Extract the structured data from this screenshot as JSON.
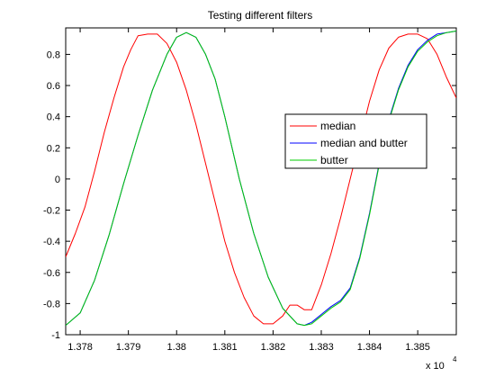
{
  "window": {
    "title": "Testing different filters"
  },
  "chart_data": {
    "type": "line",
    "title": "Testing different filters",
    "xlabel": "",
    "ylabel": "",
    "xlim": [
      13777,
      13858
    ],
    "ylim": [
      -1.0,
      0.97
    ],
    "x_multiplier_label": "x 10",
    "x_multiplier_exponent": "4",
    "x_ticks": [
      13780,
      13790,
      13800,
      13810,
      13820,
      13830,
      13840,
      13850
    ],
    "x_tick_labels": [
      "1.378",
      "1.379",
      "1.38",
      "1.381",
      "1.382",
      "1.383",
      "1.384",
      "1.385"
    ],
    "y_ticks": [
      -1,
      -0.8,
      -0.6,
      -0.4,
      -0.2,
      0,
      0.2,
      0.4,
      0.6,
      0.8
    ],
    "y_tick_labels": [
      "-1",
      "-0.8",
      "-0.6",
      "-0.4",
      "-0.2",
      "0",
      "0.2",
      "0.4",
      "0.6",
      "0.8"
    ],
    "grid": false,
    "legend_position": "right",
    "series": [
      {
        "name": "median",
        "color": "#ff0000",
        "x": [
          13777,
          13779,
          13781,
          13783,
          13785,
          13787,
          13789,
          13790.5,
          13792,
          13794,
          13796,
          13798,
          13800,
          13802,
          13804,
          13806,
          13808,
          13810,
          13812,
          13814,
          13816,
          13818,
          13820,
          13822,
          13823.5,
          13825,
          13826.5,
          13828,
          13830,
          13832,
          13834,
          13836,
          13838,
          13840,
          13842,
          13844,
          13846,
          13848,
          13850,
          13852,
          13854,
          13856,
          13858
        ],
        "y": [
          -0.5,
          -0.35,
          -0.18,
          0.05,
          0.3,
          0.52,
          0.72,
          0.83,
          0.92,
          0.93,
          0.93,
          0.87,
          0.75,
          0.57,
          0.35,
          0.1,
          -0.15,
          -0.4,
          -0.6,
          -0.76,
          -0.88,
          -0.93,
          -0.93,
          -0.88,
          -0.81,
          -0.81,
          -0.84,
          -0.84,
          -0.68,
          -0.48,
          -0.25,
          0.0,
          0.25,
          0.5,
          0.7,
          0.84,
          0.91,
          0.93,
          0.93,
          0.9,
          0.8,
          0.65,
          0.52
        ]
      },
      {
        "name": "median and butter",
        "color": "#0000ff",
        "x": [
          13777,
          13780,
          13783,
          13786,
          13789,
          13792,
          13795,
          13798,
          13800,
          13802,
          13804,
          13806,
          13808,
          13810,
          13813,
          13816,
          13819,
          13822,
          13825,
          13826.5,
          13828,
          13830,
          13832,
          13834,
          13836,
          13838,
          13840,
          13842,
          13844,
          13846,
          13848,
          13850,
          13852,
          13854,
          13856,
          13858
        ],
        "y": [
          -0.94,
          -0.86,
          -0.65,
          -0.36,
          -0.03,
          0.28,
          0.57,
          0.8,
          0.91,
          0.94,
          0.91,
          0.8,
          0.64,
          0.4,
          0.0,
          -0.35,
          -0.63,
          -0.83,
          -0.93,
          -0.94,
          -0.92,
          -0.87,
          -0.82,
          -0.78,
          -0.7,
          -0.5,
          -0.22,
          0.1,
          0.38,
          0.58,
          0.73,
          0.83,
          0.89,
          0.93,
          0.94,
          0.95
        ]
      },
      {
        "name": "butter",
        "color": "#00cc00",
        "x": [
          13777,
          13780,
          13783,
          13786,
          13789,
          13792,
          13795,
          13798,
          13800,
          13802,
          13804,
          13806,
          13808,
          13810,
          13813,
          13816,
          13819,
          13822,
          13825,
          13826.5,
          13828,
          13830,
          13832,
          13834,
          13836,
          13838,
          13840,
          13842,
          13844,
          13846,
          13848,
          13850,
          13852,
          13854,
          13856,
          13858
        ],
        "y": [
          -0.94,
          -0.86,
          -0.65,
          -0.36,
          -0.03,
          0.28,
          0.57,
          0.8,
          0.91,
          0.94,
          0.91,
          0.8,
          0.64,
          0.4,
          0.0,
          -0.35,
          -0.63,
          -0.83,
          -0.93,
          -0.94,
          -0.93,
          -0.88,
          -0.83,
          -0.79,
          -0.71,
          -0.51,
          -0.23,
          0.09,
          0.37,
          0.57,
          0.72,
          0.82,
          0.88,
          0.92,
          0.94,
          0.95
        ]
      }
    ]
  }
}
